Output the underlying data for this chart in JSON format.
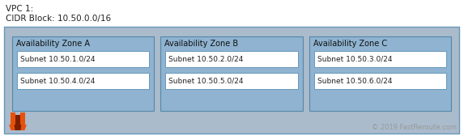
{
  "title_line1": "VPC 1:",
  "title_line2": "CIDR Block: 10.50.0.0/16",
  "outer_bg": "#ffffff",
  "vpc_bg": "#aabbcc",
  "vpc_border": "#6699bb",
  "zone_bg": "#8fb3d0",
  "zone_border": "#5588aa",
  "subnet_bg": "#ffffff",
  "subnet_border": "#6699bb",
  "zones": [
    {
      "label": "Availability Zone A",
      "subnets": [
        "Subnet 10.50.1.0/24",
        "Subnet 10.50.4.0/24"
      ]
    },
    {
      "label": "Availability Zone B",
      "subnets": [
        "Subnet 10.50.2.0/24",
        "Subnet 10.50.5.0/24"
      ]
    },
    {
      "label": "Availability Zone C",
      "subnets": [
        "Subnet 10.50.3.0/24",
        "Subnet 10.50.6.0/24"
      ]
    }
  ],
  "copyright": "© 2019 FastReroute.com",
  "title_fontsize": 7.5,
  "zone_label_fontsize": 7.0,
  "subnet_fontsize": 6.5,
  "copyright_fontsize": 6.0,
  "title_color": "#222222",
  "zone_label_color": "#111111",
  "subnet_text_color": "#222222",
  "copyright_color": "#999999",
  "aws_orange": "#e8510a",
  "aws_dark": "#7a2000"
}
